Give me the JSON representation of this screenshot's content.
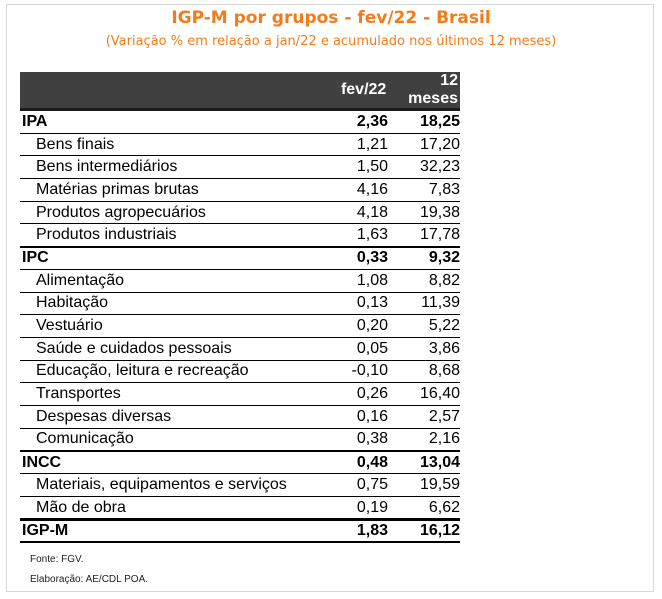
{
  "title": "IGP-M por grupos - fev/22 - Brasil",
  "subtitle": "(Variação % em relação a jan/22 e acumulado nos últimos 12 meses)",
  "table": {
    "headers": [
      "",
      "fev/22",
      "12 meses"
    ],
    "rows": [
      {
        "name": "IPA",
        "v1": "2,36",
        "v2": "18,25",
        "type": "group"
      },
      {
        "name": "Bens finais",
        "v1": "1,21",
        "v2": "17,20",
        "type": "item"
      },
      {
        "name": "Bens intermediários",
        "v1": "1,50",
        "v2": "32,23",
        "type": "item"
      },
      {
        "name": "Matérias primas brutas",
        "v1": "4,16",
        "v2": "7,83",
        "type": "item"
      },
      {
        "name": "Produtos agropecuários",
        "v1": "4,18",
        "v2": "19,38",
        "type": "item"
      },
      {
        "name": "Produtos industriais",
        "v1": "1,63",
        "v2": "17,78",
        "type": "item"
      },
      {
        "name": "IPC",
        "v1": "0,33",
        "v2": "9,32",
        "type": "group"
      },
      {
        "name": "Alimentação",
        "v1": "1,08",
        "v2": "8,82",
        "type": "item"
      },
      {
        "name": "Habitação",
        "v1": "0,13",
        "v2": "11,39",
        "type": "item"
      },
      {
        "name": "Vestuário",
        "v1": "0,20",
        "v2": "5,22",
        "type": "item"
      },
      {
        "name": "Saúde e cuidados pessoais",
        "v1": "0,05",
        "v2": "3,86",
        "type": "item"
      },
      {
        "name": "Educação, leitura e recreação",
        "v1": "-0,10",
        "v2": "8,68",
        "type": "item"
      },
      {
        "name": "Transportes",
        "v1": "0,26",
        "v2": "16,40",
        "type": "item"
      },
      {
        "name": "Despesas diversas",
        "v1": "0,16",
        "v2": "2,57",
        "type": "item"
      },
      {
        "name": "Comunicação",
        "v1": "0,38",
        "v2": "2,16",
        "type": "item"
      },
      {
        "name": "INCC",
        "v1": "0,48",
        "v2": "13,04",
        "type": "group"
      },
      {
        "name": "Materiais, equipamentos e serviços",
        "v1": "0,75",
        "v2": "19,59",
        "type": "item"
      },
      {
        "name": "Mão de obra",
        "v1": "0,19",
        "v2": "6,62",
        "type": "item"
      },
      {
        "name": "IGP-M",
        "v1": "1,83",
        "v2": "16,12",
        "type": "total"
      }
    ]
  },
  "footer": {
    "source": "Fonte: FGV.",
    "credit": "Elaboração: AE/CDL POA."
  }
}
